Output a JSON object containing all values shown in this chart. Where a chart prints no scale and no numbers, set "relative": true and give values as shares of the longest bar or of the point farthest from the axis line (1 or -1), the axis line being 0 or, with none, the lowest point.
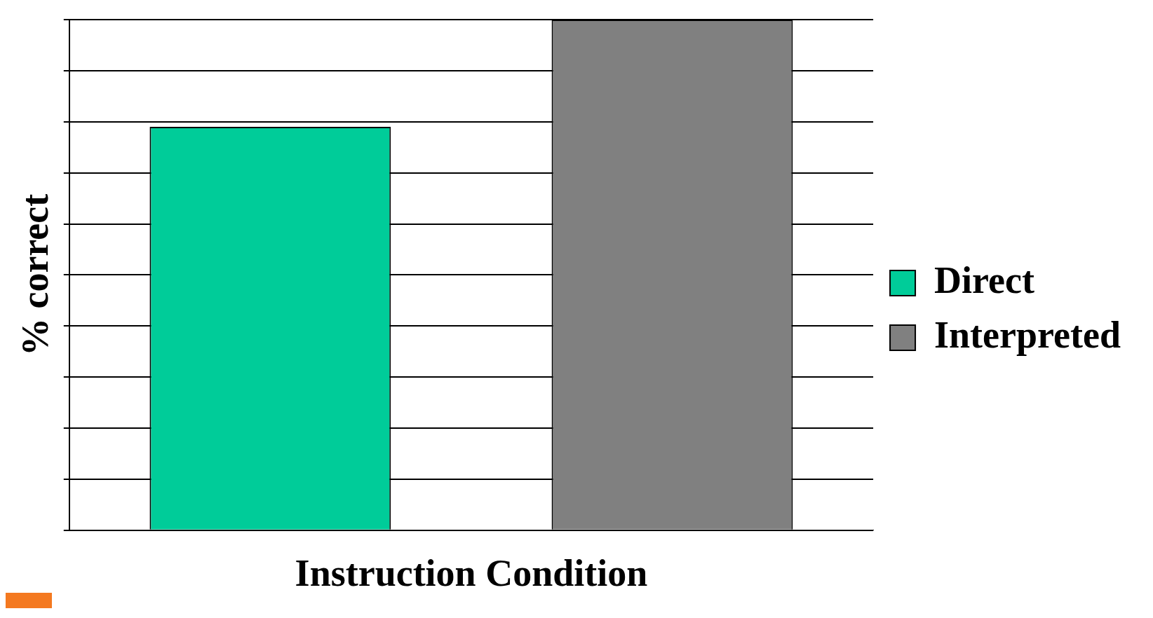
{
  "chart_data": {
    "type": "bar",
    "relative": true,
    "xlabel": "Instruction Condition",
    "ylabel": "% correct",
    "categories": [
      null
    ],
    "series": [
      {
        "name": "Direct",
        "color": "#00cc99",
        "values": [
          0.79
        ]
      },
      {
        "name": "Interpreted",
        "color": "#808080",
        "values": [
          1
        ]
      }
    ],
    "grid": "y",
    "legend": "right"
  }
}
